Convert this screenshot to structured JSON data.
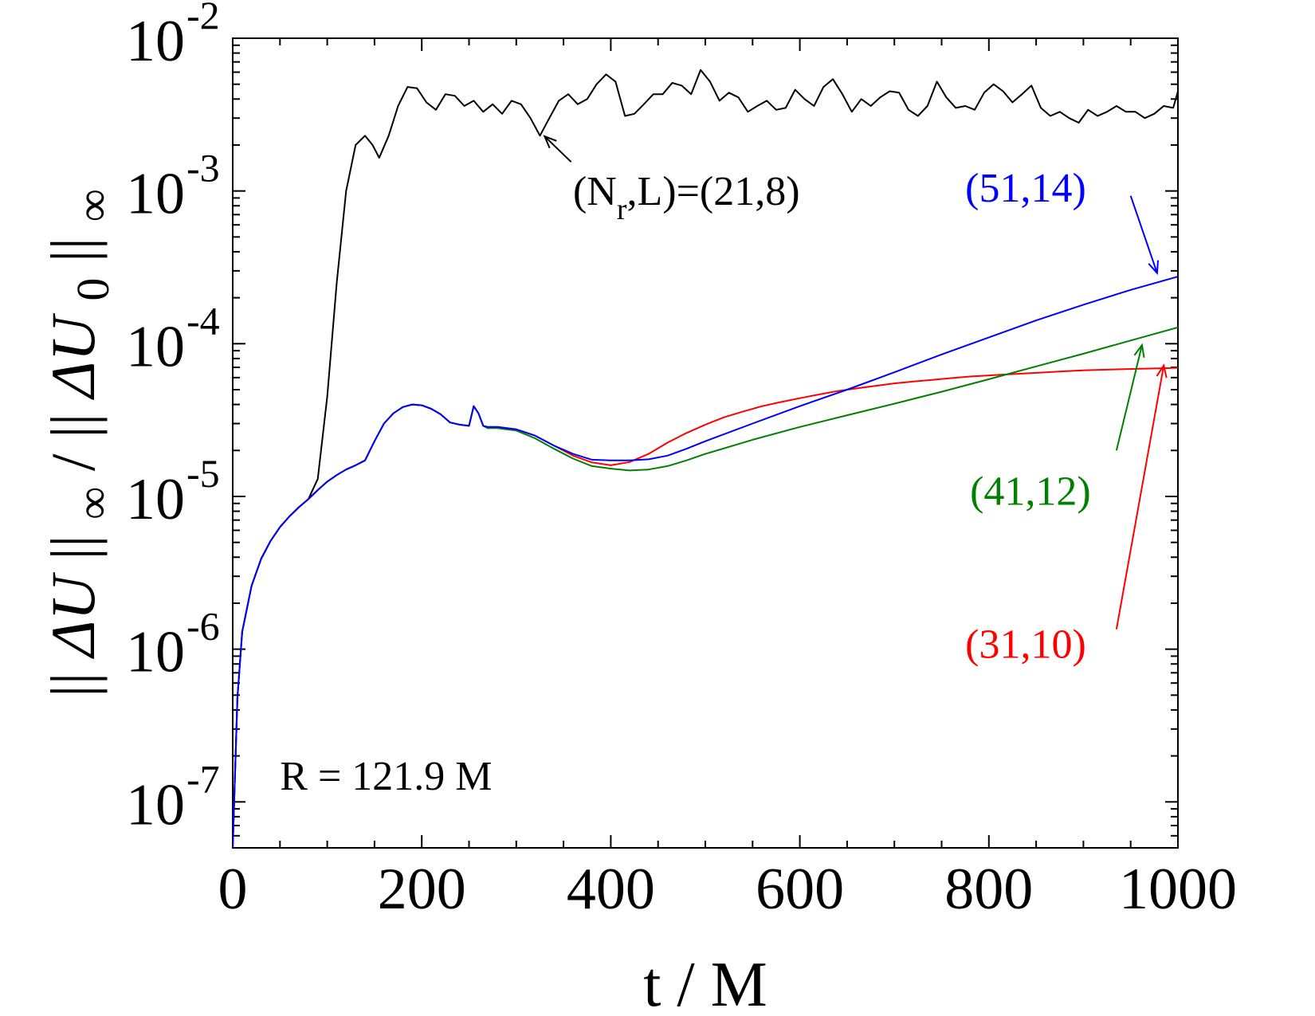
{
  "chart_data": {
    "type": "line",
    "xlabel": "t / M",
    "ylabel": "|| ΔU ||∞ / || ΔU0 ||∞",
    "ylabel_parts": {
      "a": "||",
      "b": "ΔU",
      "c": "||",
      "d": "∞",
      "e": "/",
      "f": "||",
      "g": "ΔU",
      "h": "0",
      "i": "||",
      "j": "∞"
    },
    "xlim": [
      0,
      1000
    ],
    "ylim": [
      5e-08,
      0.01
    ],
    "yscale": "log",
    "grid": false,
    "xticks": [
      "0",
      "200",
      "400",
      "600",
      "800",
      "1000"
    ],
    "yticks": [
      {
        "value": 1e-07,
        "base": "10",
        "exp": "-7"
      },
      {
        "value": 1e-06,
        "base": "10",
        "exp": "-6"
      },
      {
        "value": 1e-05,
        "base": "10",
        "exp": "-5"
      },
      {
        "value": 0.0001,
        "base": "10",
        "exp": "-4"
      },
      {
        "value": 0.001,
        "base": "10",
        "exp": "-3"
      },
      {
        "value": 0.01,
        "base": "10",
        "exp": "-2"
      }
    ],
    "series": [
      {
        "name": "(N_r,L)=(21,8)",
        "color": "#000000",
        "x": [
          0,
          5,
          10,
          20,
          30,
          40,
          50,
          60,
          70,
          80,
          90,
          100,
          110,
          120,
          130,
          140,
          148,
          155,
          165,
          175,
          185,
          195,
          205,
          215,
          225,
          235,
          245,
          255,
          265,
          275,
          285,
          295,
          305,
          315,
          325,
          335,
          345,
          355,
          365,
          375,
          385,
          395,
          405,
          415,
          425,
          435,
          445,
          455,
          465,
          475,
          485,
          495,
          505,
          515,
          525,
          535,
          545,
          555,
          565,
          575,
          585,
          595,
          605,
          615,
          625,
          635,
          645,
          655,
          665,
          675,
          685,
          695,
          705,
          715,
          725,
          735,
          745,
          755,
          765,
          775,
          785,
          795,
          805,
          815,
          825,
          835,
          845,
          855,
          865,
          875,
          885,
          895,
          905,
          915,
          925,
          935,
          945,
          955,
          965,
          975,
          985,
          995,
          1000
        ],
        "y": [
          5e-08,
          4.8e-07,
          1.3e-06,
          2.6e-06,
          3.9e-06,
          5.1e-06,
          6.3e-06,
          7.4e-06,
          8.5e-06,
          9.6e-06,
          1.3e-05,
          4.5e-05,
          0.00025,
          0.001,
          0.002,
          0.0023,
          0.002,
          0.00165,
          0.0023,
          0.0036,
          0.0048,
          0.0047,
          0.0038,
          0.0034,
          0.0043,
          0.0042,
          0.0036,
          0.0039,
          0.0033,
          0.0037,
          0.0032,
          0.0039,
          0.0037,
          0.003,
          0.0023,
          0.003,
          0.0039,
          0.0043,
          0.0037,
          0.004,
          0.005,
          0.0058,
          0.0052,
          0.0031,
          0.0032,
          0.0037,
          0.0043,
          0.0043,
          0.0051,
          0.0049,
          0.0043,
          0.0062,
          0.0052,
          0.0039,
          0.0044,
          0.0041,
          0.0033,
          0.0036,
          0.0039,
          0.0034,
          0.0035,
          0.0046,
          0.004,
          0.0036,
          0.0048,
          0.0054,
          0.0043,
          0.0033,
          0.004,
          0.0036,
          0.0041,
          0.0045,
          0.0044,
          0.0034,
          0.0031,
          0.0036,
          0.0052,
          0.0041,
          0.0035,
          0.0036,
          0.0034,
          0.0044,
          0.005,
          0.0045,
          0.0038,
          0.0043,
          0.0049,
          0.0035,
          0.0031,
          0.0033,
          0.003,
          0.0028,
          0.0034,
          0.0031,
          0.0033,
          0.0036,
          0.0033,
          0.0033,
          0.003,
          0.0032,
          0.0036,
          0.0035,
          0.0045
        ]
      },
      {
        "name": "(31,10)",
        "color": "#ff0000",
        "x": [
          0,
          5,
          10,
          20,
          30,
          40,
          50,
          60,
          70,
          80,
          90,
          100,
          110,
          120,
          130,
          140,
          150,
          160,
          170,
          180,
          190,
          200,
          210,
          220,
          230,
          240,
          250,
          255,
          260,
          265,
          270,
          280,
          300,
          320,
          340,
          360,
          380,
          400,
          420,
          440,
          460,
          480,
          500,
          520,
          540,
          560,
          580,
          600,
          620,
          640,
          660,
          680,
          700,
          720,
          740,
          760,
          780,
          800,
          820,
          840,
          860,
          880,
          900,
          920,
          940,
          960,
          980,
          1000
        ],
        "y": [
          5e-08,
          4.8e-07,
          1.3e-06,
          2.6e-06,
          3.9e-06,
          5.1e-06,
          6.3e-06,
          7.4e-06,
          8.5e-06,
          9.6e-06,
          1.1e-05,
          1.25e-05,
          1.38e-05,
          1.5e-05,
          1.6e-05,
          1.72e-05,
          2.3e-05,
          3e-05,
          3.5e-05,
          3.85e-05,
          4e-05,
          3.95e-05,
          3.75e-05,
          3.45e-05,
          3.05e-05,
          2.95e-05,
          2.9e-05,
          3.9e-05,
          3.5e-05,
          2.9e-05,
          2.8e-05,
          2.85e-05,
          2.75e-05,
          2.5e-05,
          2.15e-05,
          1.85e-05,
          1.67e-05,
          1.6e-05,
          1.68e-05,
          1.9e-05,
          2.25e-05,
          2.6e-05,
          2.95e-05,
          3.3e-05,
          3.6e-05,
          3.9e-05,
          4.15e-05,
          4.4e-05,
          4.65e-05,
          4.9e-05,
          5.1e-05,
          5.3e-05,
          5.5e-05,
          5.65e-05,
          5.8e-05,
          5.95e-05,
          6.1e-05,
          6.2e-05,
          6.3e-05,
          6.4e-05,
          6.5e-05,
          6.6e-05,
          6.7e-05,
          6.75e-05,
          6.8e-05,
          6.85e-05,
          6.9e-05,
          6.95e-05
        ]
      },
      {
        "name": "(41,12)",
        "color": "#008000",
        "x": [
          0,
          5,
          10,
          20,
          30,
          40,
          50,
          60,
          70,
          80,
          90,
          100,
          110,
          120,
          130,
          140,
          150,
          160,
          170,
          180,
          190,
          200,
          210,
          220,
          230,
          240,
          250,
          255,
          260,
          265,
          270,
          280,
          300,
          320,
          340,
          360,
          380,
          400,
          420,
          440,
          460,
          480,
          500,
          550,
          600,
          650,
          700,
          750,
          800,
          850,
          900,
          950,
          1000
        ],
        "y": [
          5e-08,
          4.8e-07,
          1.3e-06,
          2.6e-06,
          3.9e-06,
          5.1e-06,
          6.3e-06,
          7.4e-06,
          8.5e-06,
          9.6e-06,
          1.1e-05,
          1.25e-05,
          1.38e-05,
          1.5e-05,
          1.6e-05,
          1.72e-05,
          2.3e-05,
          3e-05,
          3.5e-05,
          3.85e-05,
          4e-05,
          3.95e-05,
          3.75e-05,
          3.45e-05,
          3.05e-05,
          2.95e-05,
          2.9e-05,
          3.9e-05,
          3.5e-05,
          2.9e-05,
          2.8e-05,
          2.8e-05,
          2.7e-05,
          2.4e-05,
          2.05e-05,
          1.77e-05,
          1.58e-05,
          1.52e-05,
          1.48e-05,
          1.5e-05,
          1.58e-05,
          1.72e-05,
          1.9e-05,
          2.35e-05,
          2.85e-05,
          3.4e-05,
          4.05e-05,
          4.85e-05,
          5.85e-05,
          7.1e-05,
          8.6e-05,
          0.000105,
          0.000128
        ]
      },
      {
        "name": "(51,14)",
        "color": "#0000ff",
        "x": [
          0,
          5,
          10,
          20,
          30,
          40,
          50,
          60,
          70,
          80,
          90,
          100,
          110,
          120,
          130,
          140,
          150,
          160,
          170,
          180,
          190,
          200,
          210,
          220,
          230,
          240,
          250,
          255,
          260,
          265,
          270,
          280,
          300,
          320,
          340,
          360,
          380,
          400,
          420,
          440,
          460,
          480,
          500,
          550,
          600,
          650,
          700,
          750,
          800,
          850,
          900,
          950,
          1000
        ],
        "y": [
          5e-08,
          4.8e-07,
          1.3e-06,
          2.6e-06,
          3.9e-06,
          5.1e-06,
          6.3e-06,
          7.4e-06,
          8.5e-06,
          9.6e-06,
          1.1e-05,
          1.25e-05,
          1.38e-05,
          1.5e-05,
          1.6e-05,
          1.72e-05,
          2.3e-05,
          3e-05,
          3.5e-05,
          3.85e-05,
          4e-05,
          3.95e-05,
          3.75e-05,
          3.45e-05,
          3.05e-05,
          2.95e-05,
          2.9e-05,
          3.9e-05,
          3.5e-05,
          2.9e-05,
          2.85e-05,
          2.85e-05,
          2.75e-05,
          2.5e-05,
          2.15e-05,
          1.9e-05,
          1.74e-05,
          1.72e-05,
          1.72e-05,
          1.75e-05,
          1.85e-05,
          2.05e-05,
          2.3e-05,
          3e-05,
          3.9e-05,
          5e-05,
          6.5e-05,
          8.5e-05,
          0.00011,
          0.000142,
          0.00018,
          0.000225,
          0.000275
        ]
      }
    ],
    "annotations": [
      {
        "kind": "label",
        "parts": [
          "(N",
          "r",
          ",L)=(21,8)"
        ],
        "color": "#000000",
        "x": 360,
        "y": 0.00081,
        "arrow_from": [
          358,
          0.00155
        ],
        "arrow_to": [
          330,
          0.00228
        ]
      },
      {
        "kind": "label",
        "text": "(51,14)",
        "color": "#0000ff",
        "x": 775,
        "y": 0.00085,
        "arrow_from": [
          950,
          0.00093
        ],
        "arrow_to": [
          978,
          0.00029
        ]
      },
      {
        "kind": "label",
        "text": "(41,12)",
        "color": "#008000",
        "x": 780,
        "y": 8.8e-06,
        "arrow_from": [
          935,
          2e-05
        ],
        "arrow_to": [
          962,
          9.8e-05
        ]
      },
      {
        "kind": "label",
        "text": "(31,10)",
        "color": "#ff0000",
        "x": 775,
        "y": 8.8e-07,
        "arrow_from": [
          935,
          1.35e-06
        ],
        "arrow_to": [
          985,
          7.2e-05
        ]
      },
      {
        "kind": "text",
        "text": "R = 121.9 M",
        "color": "#000000",
        "x": 50,
        "y": 1.2e-07
      }
    ]
  }
}
